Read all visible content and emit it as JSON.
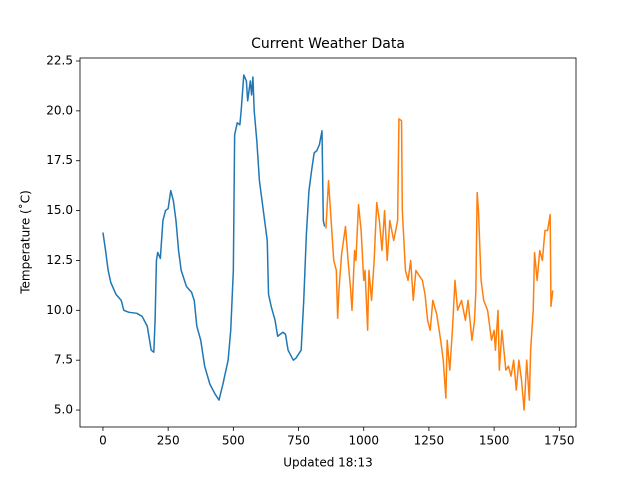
{
  "chart_data": {
    "type": "line",
    "title": "Current Weather Data",
    "x_label": "Updated 18:13",
    "y_label": "Temperature (˚C)",
    "xlim": [
      -88,
      1814
    ],
    "ylim": [
      4.15,
      22.65
    ],
    "xticks": [
      0,
      250,
      500,
      750,
      1000,
      1250,
      1500,
      1750
    ],
    "yticks": [
      {
        "value": 5,
        "label": "5.0"
      },
      7.5,
      {
        "value": 10,
        "label": "10.0"
      },
      12.5,
      {
        "value": 15,
        "label": "15.0"
      },
      17.5,
      {
        "value": 20,
        "label": "20.0"
      },
      22.5
    ],
    "series": [
      {
        "color": "#1f77b4",
        "x": [
          0,
          10,
          20,
          30,
          50,
          70,
          80,
          100,
          130,
          150,
          170,
          185,
          195,
          200,
          205,
          210,
          220,
          230,
          240,
          250,
          260,
          270,
          280,
          290,
          300,
          320,
          340,
          350,
          360,
          375,
          390,
          410,
          430,
          445,
          460,
          480,
          490,
          500,
          505,
          515,
          525,
          530,
          540,
          550,
          555,
          565,
          570,
          575,
          580,
          590,
          600,
          620,
          630,
          635,
          645,
          660,
          670,
          690,
          700,
          710,
          730,
          740,
          760,
          770,
          780,
          790,
          800,
          810,
          820,
          830,
          840,
          845,
          850
        ],
        "values": [
          13.9,
          13.0,
          12.0,
          11.4,
          10.8,
          10.5,
          10.0,
          9.9,
          9.85,
          9.7,
          9.2,
          8.0,
          7.9,
          9.5,
          12.5,
          12.9,
          12.6,
          14.5,
          15.0,
          15.1,
          16.0,
          15.5,
          14.5,
          13.0,
          12.0,
          11.2,
          10.9,
          10.5,
          9.2,
          8.5,
          7.2,
          6.3,
          5.8,
          5.5,
          6.3,
          7.5,
          9.0,
          12.0,
          18.8,
          19.4,
          19.3,
          20.0,
          21.8,
          21.5,
          20.5,
          21.5,
          20.8,
          21.7,
          20.0,
          18.5,
          16.5,
          14.5,
          13.5,
          10.8,
          10.2,
          9.5,
          8.7,
          8.9,
          8.8,
          8.0,
          7.5,
          7.6,
          8.0,
          10.5,
          13.8,
          16.0,
          17.0,
          17.9,
          18.0,
          18.3,
          19.0,
          14.5,
          14.2
        ]
      },
      {
        "color": "#ff7f0e",
        "x": [
          855,
          865,
          875,
          885,
          895,
          900,
          905,
          915,
          930,
          940,
          950,
          955,
          965,
          970,
          980,
          990,
          1000,
          1005,
          1015,
          1020,
          1030,
          1040,
          1045,
          1050,
          1060,
          1070,
          1080,
          1090,
          1100,
          1115,
          1130,
          1135,
          1145,
          1148,
          1160,
          1170,
          1180,
          1190,
          1200,
          1210,
          1225,
          1235,
          1245,
          1255,
          1265,
          1280,
          1295,
          1305,
          1315,
          1320,
          1330,
          1340,
          1350,
          1360,
          1375,
          1390,
          1400,
          1415,
          1425,
          1430,
          1435,
          1440,
          1450,
          1460,
          1475,
          1490,
          1500,
          1505,
          1515,
          1520,
          1530,
          1545,
          1555,
          1565,
          1575,
          1585,
          1595,
          1605,
          1615,
          1625,
          1635,
          1640,
          1650,
          1655,
          1665,
          1675,
          1685,
          1695,
          1705,
          1715,
          1718,
          1725
        ],
        "values": [
          14.1,
          16.5,
          14.5,
          12.5,
          12.0,
          9.6,
          11.0,
          12.8,
          14.2,
          12.5,
          11.0,
          10.0,
          13.0,
          12.5,
          15.3,
          14.0,
          11.5,
          12.0,
          9.0,
          12.0,
          10.5,
          12.5,
          14.0,
          15.4,
          14.5,
          13.0,
          15.0,
          12.5,
          14.5,
          13.5,
          14.5,
          19.6,
          19.5,
          15.0,
          12.0,
          11.5,
          12.5,
          10.5,
          12.0,
          11.8,
          11.5,
          10.8,
          9.5,
          9.0,
          10.5,
          9.8,
          8.5,
          7.5,
          5.6,
          8.5,
          7.0,
          9.0,
          11.5,
          10.0,
          10.5,
          9.5,
          10.5,
          8.5,
          9.5,
          11.0,
          15.9,
          15.0,
          11.5,
          10.5,
          10.0,
          8.5,
          9.0,
          8.0,
          10.0,
          7.0,
          9.0,
          7.0,
          7.2,
          6.7,
          7.5,
          6.0,
          7.5,
          6.5,
          5.0,
          7.5,
          5.5,
          8.0,
          10.0,
          12.9,
          11.5,
          13.0,
          12.5,
          14.0,
          14.0,
          14.8,
          10.2,
          11.0
        ]
      }
    ]
  }
}
